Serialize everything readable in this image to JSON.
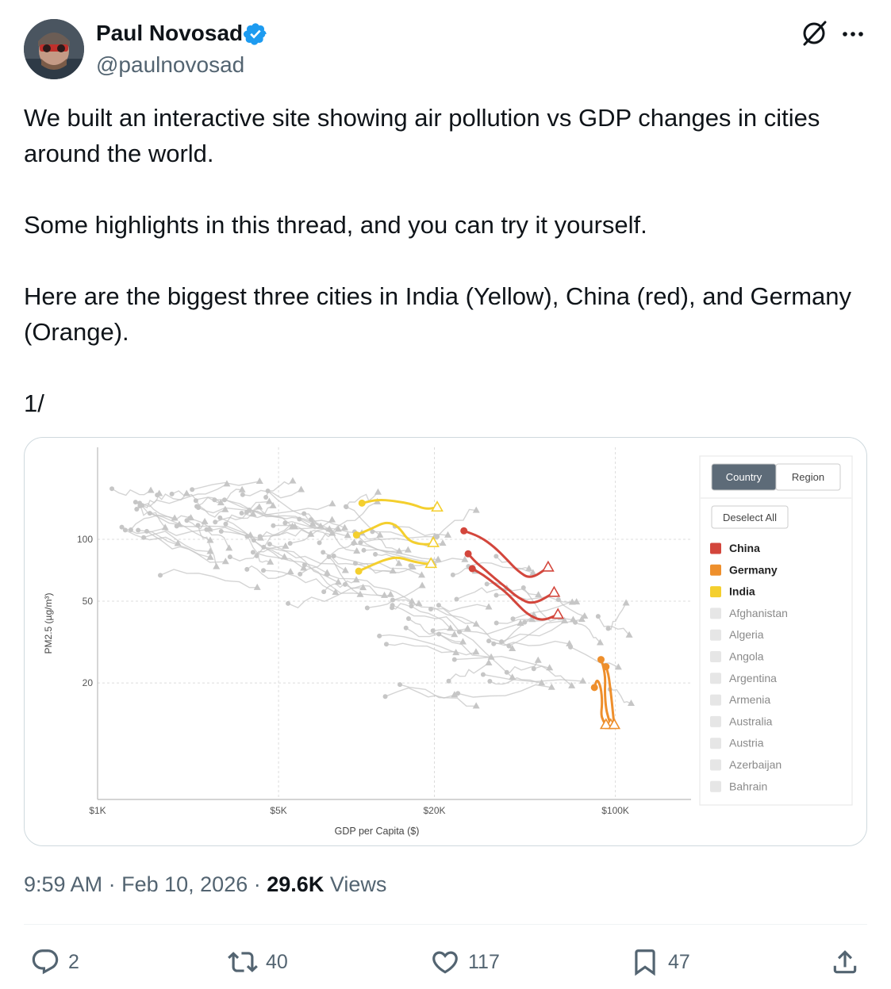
{
  "author": {
    "name": "Paul Novosad",
    "handle": "@paulnovosad",
    "verified": true,
    "avatar_icon": "profile-photo"
  },
  "tweet": {
    "paragraphs": [
      "We built an interactive site showing air pollution vs GDP changes in cities around the world.",
      "Some highlights in this thread, and you can try it yourself.",
      "Here are the biggest three cities in India (Yellow), China (red), and Germany (Orange).",
      "1/"
    ]
  },
  "meta": {
    "time": "9:59 AM",
    "separator": "·",
    "date": "Feb 10, 2026",
    "views_count": "29.6K",
    "views_label": "Views"
  },
  "actions": {
    "reply_count": "2",
    "retweet_count": "40",
    "like_count": "117",
    "bookmark_count": "47"
  },
  "colors": {
    "accent": "#1d9bf0",
    "china": "#d3463c",
    "germany": "#ee8f2c",
    "india": "#f4cf2e",
    "background_series": "#c8c8c8"
  },
  "chart_data": {
    "type": "line",
    "xlabel": "GDP per Capita ($)",
    "ylabel": "PM2.5 (µg/m³)",
    "x_scale": "log",
    "y_scale": "log",
    "x_ticks": [
      "$1K",
      "$5K",
      "$20K",
      "$100K"
    ],
    "y_ticks": [
      "100",
      "50",
      "20"
    ],
    "grid": true,
    "legend_placement": "right",
    "toggle": {
      "options": [
        "Country",
        "Region"
      ],
      "selected": "Country"
    },
    "deselect_label": "Deselect All",
    "legend": [
      {
        "name": "China",
        "color": "#d3463c",
        "active": true
      },
      {
        "name": "Germany",
        "color": "#ee8f2c",
        "active": true
      },
      {
        "name": "India",
        "color": "#f4cf2e",
        "active": true
      },
      {
        "name": "Afghanistan",
        "color": "#e6e6e6",
        "active": false
      },
      {
        "name": "Algeria",
        "color": "#e6e6e6",
        "active": false
      },
      {
        "name": "Angola",
        "color": "#e6e6e6",
        "active": false
      },
      {
        "name": "Argentina",
        "color": "#e6e6e6",
        "active": false
      },
      {
        "name": "Armenia",
        "color": "#e6e6e6",
        "active": false
      },
      {
        "name": "Australia",
        "color": "#e6e6e6",
        "active": false
      },
      {
        "name": "Austria",
        "color": "#e6e6e6",
        "active": false
      },
      {
        "name": "Azerbaijan",
        "color": "#e6e6e6",
        "active": false
      },
      {
        "name": "Bahrain",
        "color": "#e6e6e6",
        "active": false
      }
    ],
    "series": [
      {
        "name": "India",
        "color": "#f4cf2e",
        "cities": [
          {
            "x": [
              10500,
              12000,
              14000,
              16500,
              18500,
              20500
            ],
            "y": [
              150,
              156,
              154,
              148,
              140,
              143
            ]
          },
          {
            "x": [
              10000,
              11500,
              13000,
              14500,
              16000,
              18500,
              19800
            ],
            "y": [
              105,
              113,
              122,
              116,
              97,
              94,
              96
            ]
          },
          {
            "x": [
              10200,
              11500,
              13000,
              14500,
              16500,
              18500,
              19400
            ],
            "y": [
              70,
              75,
              80,
              82,
              78,
              76,
              76
            ]
          }
        ]
      },
      {
        "name": "China",
        "color": "#d3463c",
        "cities": [
          {
            "x": [
              26000,
              30000,
              34000,
              38000,
              42000,
              47000,
              55000
            ],
            "y": [
              110,
              103,
              92,
              80,
              70,
              64,
              73
            ]
          },
          {
            "x": [
              27000,
              29000,
              31000,
              34000,
              38000,
              42000,
              48000,
              58000
            ],
            "y": [
              85,
              77,
              72,
              65,
              58,
              52,
              48,
              55
            ]
          },
          {
            "x": [
              28000,
              31000,
              34000,
              38000,
              42000,
              46000,
              52000,
              60000
            ],
            "y": [
              72,
              67,
              61,
              55,
              48,
              43,
              40,
              43
            ]
          }
        ]
      },
      {
        "name": "Germany",
        "color": "#ee8f2c",
        "cities": [
          {
            "x": [
              88000,
              90000,
              91500,
              91000,
              92000,
              94000,
              96000
            ],
            "y": [
              26,
              24,
              21,
              18,
              15,
              13.5,
              12.5
            ]
          },
          {
            "x": [
              83000,
              85000,
              88000,
              89000,
              88000,
              90000,
              92000
            ],
            "y": [
              19,
              21,
              19,
              16,
              14,
              13,
              12.5
            ]
          },
          {
            "x": [
              92000,
              94000,
              95000,
              96000,
              97000,
              98000,
              99000
            ],
            "y": [
              24,
              22,
              20,
              18,
              16,
              14,
              12.5
            ]
          }
        ]
      }
    ]
  }
}
